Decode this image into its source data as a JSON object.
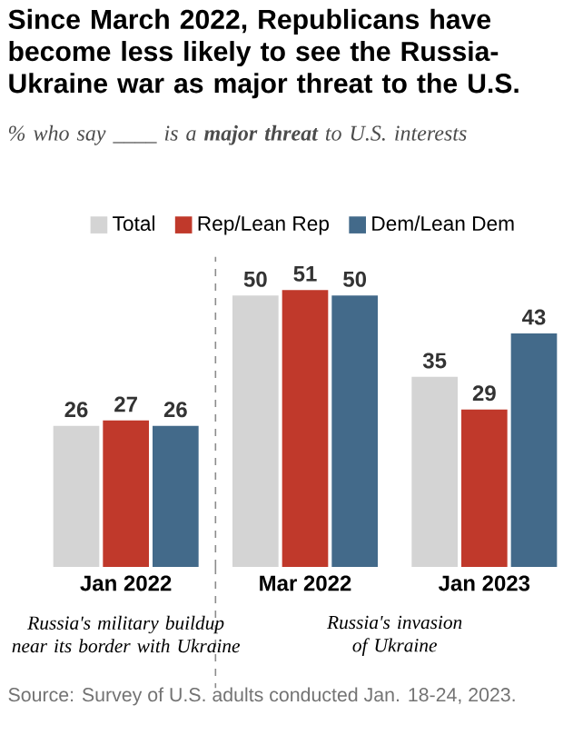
{
  "chart_data": {
    "type": "bar",
    "title": "Since March 2022, Republicans have become less likely to see the Russia-Ukraine war as major threat to the U.S.",
    "subtitle": "% who say ____ is a **major threat** to U.S. interests",
    "categories": [
      "Jan 2022",
      "Mar 2022",
      "Jan 2023"
    ],
    "series": [
      {
        "name": "Total",
        "color": "#d4d4d4",
        "values": [
          26,
          50,
          35
        ]
      },
      {
        "name": "Rep/Lean Rep",
        "color": "#c0392b",
        "values": [
          27,
          51,
          29
        ]
      },
      {
        "name": "Dem/Lean Dem",
        "color": "#436a8a",
        "values": [
          26,
          50,
          43
        ]
      }
    ],
    "data_labels": true,
    "legend": "top",
    "tick_labels": "x",
    "annotations": [
      "Russia's military buildup near its border with Ukraine",
      "Russia's invasion of Ukraine",
      "Source: Survey of U.S. adults conducted Jan. 18-24, 2023."
    ]
  }
}
